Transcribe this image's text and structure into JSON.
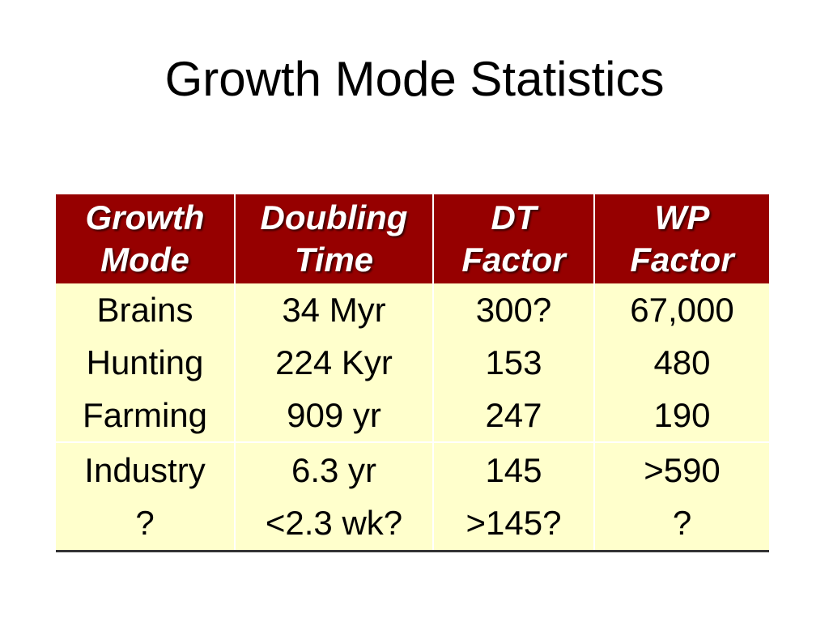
{
  "slide": {
    "title": "Growth Mode Statistics"
  },
  "table": {
    "headers": [
      {
        "line1": "Growth",
        "line2": "Mode"
      },
      {
        "line1": "Doubling",
        "line2": "Time"
      },
      {
        "line1": "DT",
        "line2": "Factor"
      },
      {
        "line1": "WP",
        "line2": "Factor"
      }
    ],
    "rows": [
      {
        "mode": "Brains",
        "doubling": "34 Myr",
        "dt": "300?",
        "wp": "67,000"
      },
      {
        "mode": "Hunting",
        "doubling": "224 Kyr",
        "dt": "153",
        "wp": "480"
      },
      {
        "mode": "Farming",
        "doubling": "909 yr",
        "dt": "247",
        "wp": "190"
      },
      {
        "mode": "Industry",
        "doubling": "6.3 yr",
        "dt": "145",
        "wp": ">590"
      },
      {
        "mode": "?",
        "doubling": "<2.3 wk?",
        "dt": ">145?",
        "wp": "?"
      }
    ]
  },
  "colors": {
    "header_bg": "#960000",
    "body_bg": "#ffffcc",
    "header_text": "#ffffff"
  }
}
